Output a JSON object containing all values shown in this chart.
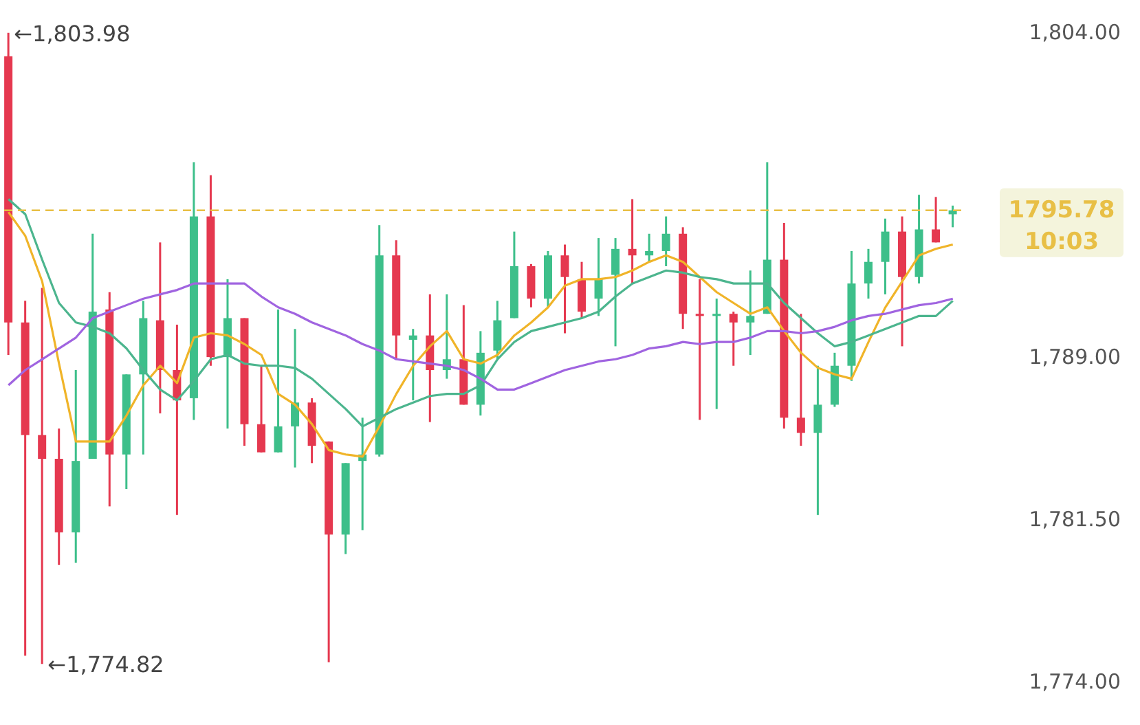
{
  "chart_data": {
    "type": "candlestick",
    "categories": [
      null,
      null,
      null,
      null,
      null,
      null,
      null,
      null,
      null,
      null,
      null,
      null,
      null,
      null,
      null,
      null,
      null,
      null,
      null,
      null,
      null,
      null,
      null,
      null,
      null,
      null,
      null,
      null,
      null,
      null,
      null,
      null,
      null,
      null,
      null,
      null,
      null,
      null,
      null,
      null,
      null,
      null,
      null,
      null,
      null,
      null,
      null,
      null,
      null,
      null,
      null,
      null,
      null,
      null,
      null,
      null,
      null
    ],
    "ohlc": [
      [
        1802.9,
        1803.98,
        1789.1,
        1790.6
      ],
      [
        1790.6,
        1791.6,
        1775.2,
        1785.4
      ],
      [
        1785.4,
        1792.2,
        1774.82,
        1784.3
      ],
      [
        1784.3,
        1785.7,
        1779.4,
        1780.9
      ],
      [
        1780.9,
        1788.4,
        1779.5,
        1784.2
      ],
      [
        1784.3,
        1794.7,
        1784.3,
        1791.1
      ],
      [
        1791.2,
        1792.0,
        1782.1,
        1784.5
      ],
      [
        1784.5,
        1788.2,
        1782.9,
        1788.2
      ],
      [
        1788.2,
        1791.6,
        1784.5,
        1790.8
      ],
      [
        1790.7,
        1794.3,
        1786.4,
        1788.4
      ],
      [
        1788.4,
        1790.5,
        1781.7,
        1787.0
      ],
      [
        1787.1,
        1798.0,
        1786.1,
        1795.5
      ],
      [
        1795.5,
        1797.4,
        1788.6,
        1789.0
      ],
      [
        1789.0,
        1792.6,
        1785.7,
        1790.8
      ],
      [
        1790.8,
        1790.8,
        1784.9,
        1785.9
      ],
      [
        1785.9,
        1788.6,
        1784.6,
        1784.6
      ],
      [
        1784.6,
        1791.2,
        1784.6,
        1785.8
      ],
      [
        1785.8,
        1790.3,
        1783.9,
        1786.9
      ],
      [
        1786.9,
        1787.1,
        1784.1,
        1784.9
      ],
      [
        1785.1,
        1785.1,
        1774.9,
        1780.8
      ],
      [
        1780.8,
        1784.1,
        1779.9,
        1784.1
      ],
      [
        1784.2,
        1786.2,
        1781.0,
        1784.5
      ],
      [
        1784.5,
        1795.1,
        1784.4,
        1793.7
      ],
      [
        1793.7,
        1794.4,
        1788.9,
        1790.0
      ],
      [
        1789.8,
        1790.3,
        1787.0,
        1790.0
      ],
      [
        1790.0,
        1791.9,
        1786.0,
        1788.4
      ],
      [
        1788.4,
        1791.9,
        1788.0,
        1788.9
      ],
      [
        1788.9,
        1791.4,
        1786.8,
        1786.8
      ],
      [
        1786.8,
        1790.2,
        1786.3,
        1789.2
      ],
      [
        1789.3,
        1791.6,
        1788.9,
        1790.7
      ],
      [
        1790.8,
        1794.8,
        1790.8,
        1793.2
      ],
      [
        1793.2,
        1793.3,
        1791.3,
        1791.7
      ],
      [
        1791.7,
        1793.9,
        1791.3,
        1793.7
      ],
      [
        1793.7,
        1794.2,
        1790.1,
        1792.7
      ],
      [
        1792.6,
        1793.4,
        1790.8,
        1791.1
      ],
      [
        1791.7,
        1794.5,
        1790.9,
        1792.6
      ],
      [
        1792.8,
        1794.5,
        1789.5,
        1794.0
      ],
      [
        1794.0,
        1796.3,
        1792.4,
        1793.7
      ],
      [
        1793.7,
        1794.7,
        1793.4,
        1793.9
      ],
      [
        1793.9,
        1795.5,
        1793.2,
        1794.7
      ],
      [
        1794.7,
        1795.0,
        1790.3,
        1791.0
      ],
      [
        1791.0,
        1792.6,
        1786.1,
        1790.9
      ],
      [
        1790.9,
        1791.7,
        1786.6,
        1791.0
      ],
      [
        1791.0,
        1791.1,
        1788.6,
        1790.6
      ],
      [
        1790.6,
        1793.0,
        1789.1,
        1790.9
      ],
      [
        1791.0,
        1798.0,
        1791.0,
        1793.5
      ],
      [
        1793.5,
        1795.2,
        1785.7,
        1786.2
      ],
      [
        1786.2,
        1791.0,
        1784.9,
        1785.5
      ],
      [
        1785.5,
        1788.6,
        1781.7,
        1786.8
      ],
      [
        1786.8,
        1789.2,
        1786.7,
        1788.6
      ],
      [
        1788.6,
        1793.9,
        1787.9,
        1792.4
      ],
      [
        1792.4,
        1794.0,
        1791.7,
        1793.4
      ],
      [
        1793.4,
        1795.4,
        1791.9,
        1794.8
      ],
      [
        1794.8,
        1795.5,
        1789.5,
        1792.7
      ],
      [
        1792.7,
        1796.5,
        1792.4,
        1794.9
      ],
      [
        1794.9,
        1796.4,
        1794.3,
        1794.3
      ],
      [
        1795.6,
        1796.0,
        1795.0,
        1795.78
      ]
    ],
    "colors": [
      "#e5384f",
      "#e5384f",
      "#e5384f",
      "#e5384f",
      "#3dbf8a",
      "#3dbf8a",
      "#e5384f",
      "#3dbf8a",
      "#3dbf8a",
      "#e5384f",
      "#e5384f",
      "#3dbf8a",
      "#e5384f",
      "#3dbf8a",
      "#e5384f",
      "#e5384f",
      "#3dbf8a",
      "#3dbf8a",
      "#e5384f",
      "#e5384f",
      "#3dbf8a",
      "#3dbf8a",
      "#3dbf8a",
      "#e5384f",
      "#3dbf8a",
      "#e5384f",
      "#3dbf8a",
      "#e5384f",
      "#3dbf8a",
      "#3dbf8a",
      "#3dbf8a",
      "#e5384f",
      "#3dbf8a",
      "#e5384f",
      "#e5384f",
      "#3dbf8a",
      "#3dbf8a",
      "#e5384f",
      "#3dbf8a",
      "#3dbf8a",
      "#e5384f",
      "#e5384f",
      "#3dbf8a",
      "#e5384f",
      "#3dbf8a",
      "#3dbf8a",
      "#e5384f",
      "#e5384f",
      "#3dbf8a",
      "#3dbf8a",
      "#3dbf8a",
      "#3dbf8a",
      "#3dbf8a",
      "#e5384f",
      "#3dbf8a",
      "#e5384f",
      "#3dbf8a"
    ],
    "series": [
      {
        "type": "line",
        "color": "#f0b429",
        "values": [
          1795.7,
          1794.6,
          1792.5,
          1788.7,
          1785.1,
          1785.1,
          1785.1,
          1786.3,
          1787.7,
          1788.6,
          1787.8,
          1789.9,
          1790.1,
          1790.0,
          1789.6,
          1789.1,
          1787.3,
          1786.8,
          1785.9,
          1784.7,
          1784.5,
          1784.4,
          1785.8,
          1787.3,
          1788.6,
          1789.5,
          1790.2,
          1788.9,
          1788.7,
          1789.1,
          1790.0,
          1790.6,
          1791.3,
          1792.3,
          1792.6,
          1792.6,
          1792.7,
          1793.0,
          1793.4,
          1793.7,
          1793.4,
          1792.7,
          1792.0,
          1791.5,
          1791.0,
          1791.3,
          1790.2,
          1789.2,
          1788.5,
          1788.2,
          1788.0,
          1789.7,
          1791.3,
          1792.5,
          1793.7,
          1794.0,
          1794.2
        ]
      },
      {
        "type": "line",
        "color": "#4cb58e",
        "values": [
          1796.3,
          1795.6,
          1793.5,
          1791.5,
          1790.6,
          1790.4,
          1790.1,
          1789.4,
          1788.4,
          1787.5,
          1787.0,
          1787.9,
          1788.9,
          1789.1,
          1788.7,
          1788.6,
          1788.6,
          1788.5,
          1788.0,
          1787.3,
          1786.6,
          1785.8,
          1786.2,
          1786.6,
          1786.9,
          1787.2,
          1787.3,
          1787.3,
          1787.7,
          1788.9,
          1789.7,
          1790.2,
          1790.4,
          1790.6,
          1790.8,
          1791.1,
          1791.8,
          1792.4,
          1792.7,
          1793.0,
          1792.9,
          1792.7,
          1792.6,
          1792.4,
          1792.4,
          1792.4,
          1791.5,
          1790.8,
          1790.1,
          1789.5,
          1789.7,
          1790.0,
          1790.3,
          1790.6,
          1790.9,
          1790.9,
          1791.6
        ]
      },
      {
        "type": "line",
        "color": "#a064e0",
        "values": [
          1787.7,
          1788.4,
          1788.9,
          1789.4,
          1789.9,
          1790.8,
          1791.1,
          1791.4,
          1791.7,
          1791.9,
          1792.1,
          1792.4,
          1792.4,
          1792.4,
          1792.4,
          1791.8,
          1791.3,
          1791.0,
          1790.6,
          1790.3,
          1790.0,
          1789.6,
          1789.3,
          1788.9,
          1788.8,
          1788.7,
          1788.6,
          1788.4,
          1788.0,
          1787.5,
          1787.5,
          1787.8,
          1788.1,
          1788.4,
          1788.6,
          1788.8,
          1788.9,
          1789.1,
          1789.4,
          1789.5,
          1789.7,
          1789.6,
          1789.7,
          1789.7,
          1789.9,
          1790.2,
          1790.2,
          1790.1,
          1790.2,
          1790.4,
          1790.7,
          1790.9,
          1791.0,
          1791.2,
          1791.4,
          1791.5,
          1791.7
        ]
      }
    ],
    "ylim": [
      1772,
      1805.5
    ],
    "yticks": [
      {
        "value": 1804,
        "label": "1,804.00"
      },
      {
        "value": 1789,
        "label": "1,789.00"
      },
      {
        "value": 1781.5,
        "label": "1,781.50"
      },
      {
        "value": 1774,
        "label": "1,774.00"
      }
    ],
    "tick_labels": "y",
    "ref_lines": [
      {
        "axis": "y",
        "value": 1795.78,
        "label": "1795.78",
        "color": "#e8bf45",
        "line_style": "dashed"
      }
    ],
    "annotations": [
      "←1,803.98",
      "←1,774.82",
      "10:03"
    ]
  }
}
